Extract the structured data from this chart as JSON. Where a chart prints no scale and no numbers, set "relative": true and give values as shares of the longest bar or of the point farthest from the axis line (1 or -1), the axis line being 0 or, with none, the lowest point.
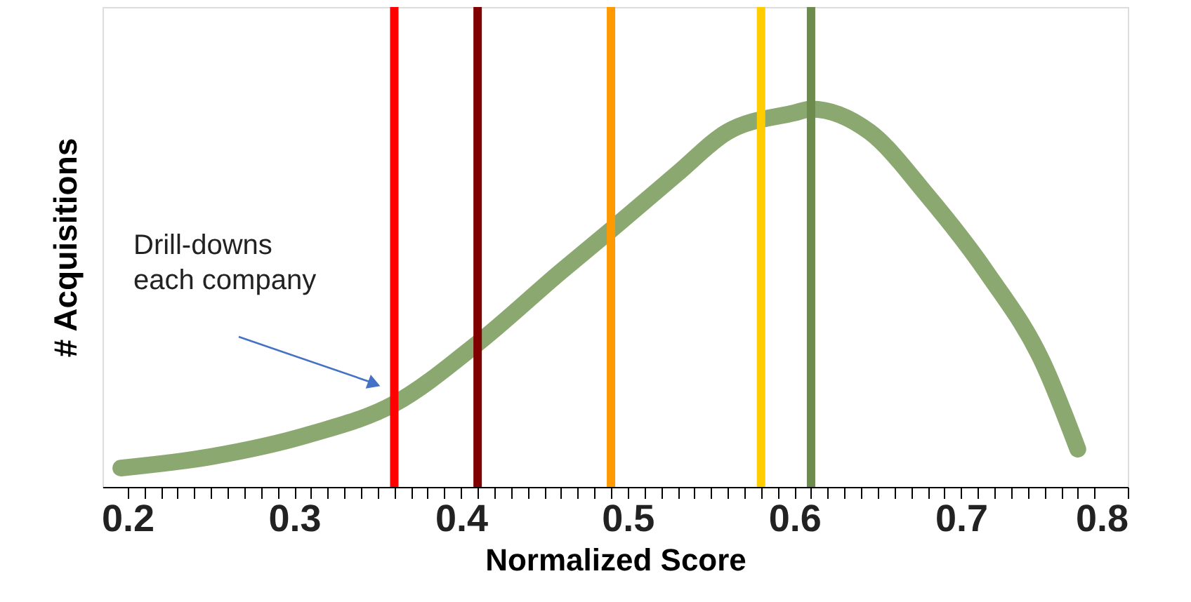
{
  "chart_data": {
    "type": "line",
    "xlabel": "Normalized Score",
    "ylabel": "# Acquisitions",
    "relative": true,
    "grid": false,
    "line_style": "solid",
    "x": [
      0.196,
      0.25,
      0.31,
      0.36,
      0.41,
      0.46,
      0.49,
      0.53,
      0.56,
      0.6,
      0.61,
      0.645,
      0.68,
      0.715,
      0.75,
      0.77
    ],
    "series": [
      {
        "color": "#8aa870",
        "values": [
          0.05,
          0.08,
          0.14,
          0.22,
          0.38,
          0.57,
          0.68,
          0.83,
          0.94,
          0.99,
          1.0,
          0.94,
          0.77,
          0.57,
          0.32,
          0.1
        ]
      }
    ],
    "xlim": [
      0.185,
      0.8
    ],
    "xticks": [
      0.2,
      {
        "value": 0.21,
        "label": null
      },
      {
        "value": 0.22,
        "label": null
      },
      {
        "value": 0.23,
        "label": null
      },
      {
        "value": 0.24,
        "label": null
      },
      {
        "value": 0.25,
        "label": null
      },
      {
        "value": 0.26,
        "label": null
      },
      {
        "value": 0.27,
        "label": null
      },
      {
        "value": 0.28,
        "label": null
      },
      {
        "value": 0.29,
        "label": null
      },
      0.3,
      {
        "value": 0.31,
        "label": null
      },
      {
        "value": 0.32,
        "label": null
      },
      {
        "value": 0.33,
        "label": null
      },
      {
        "value": 0.34,
        "label": null
      },
      {
        "value": 0.35,
        "label": null
      },
      {
        "value": 0.36,
        "label": null
      },
      {
        "value": 0.37,
        "label": null
      },
      {
        "value": 0.38,
        "label": null
      },
      {
        "value": 0.39,
        "label": null
      },
      0.4,
      {
        "value": 0.41,
        "label": null
      },
      {
        "value": 0.42,
        "label": null
      },
      {
        "value": 0.43,
        "label": null
      },
      {
        "value": 0.44,
        "label": null
      },
      {
        "value": 0.45,
        "label": null
      },
      {
        "value": 0.46,
        "label": null
      },
      {
        "value": 0.47,
        "label": null
      },
      {
        "value": 0.48,
        "label": null
      },
      {
        "value": 0.49,
        "label": null
      },
      0.5,
      {
        "value": 0.51,
        "label": null
      },
      {
        "value": 0.52,
        "label": null
      },
      {
        "value": 0.53,
        "label": null
      },
      {
        "value": 0.54,
        "label": null
      },
      {
        "value": 0.55,
        "label": null
      },
      {
        "value": 0.56,
        "label": null
      },
      {
        "value": 0.57,
        "label": null
      },
      {
        "value": 0.58,
        "label": null
      },
      {
        "value": 0.59,
        "label": null
      },
      0.6,
      {
        "value": 0.61,
        "label": null
      },
      {
        "value": 0.62,
        "label": null
      },
      {
        "value": 0.63,
        "label": null
      },
      {
        "value": 0.64,
        "label": null
      },
      {
        "value": 0.65,
        "label": null
      },
      {
        "value": 0.66,
        "label": null
      },
      {
        "value": 0.67,
        "label": null
      },
      {
        "value": 0.68,
        "label": null
      },
      {
        "value": 0.69,
        "label": null
      },
      0.7,
      {
        "value": 0.71,
        "label": null
      },
      {
        "value": 0.72,
        "label": null
      },
      {
        "value": 0.73,
        "label": null
      },
      {
        "value": 0.74,
        "label": null
      },
      {
        "value": 0.75,
        "label": null
      },
      {
        "value": 0.76,
        "label": null
      },
      {
        "value": 0.77,
        "label": null
      },
      {
        "value": 0.78,
        "label": null
      },
      0.8
    ],
    "ref_lines": [
      {
        "axis": "x",
        "value": 0.36,
        "color": "#ff0000"
      },
      {
        "axis": "x",
        "value": 0.41,
        "color": "#800000"
      },
      {
        "axis": "x",
        "value": 0.49,
        "color": "#ff9900"
      },
      {
        "axis": "x",
        "value": 0.58,
        "color": "#ffcc00"
      },
      {
        "axis": "x",
        "value": 0.61,
        "color": "#6e8b4e"
      }
    ],
    "annotations": [
      "Drill-downs\neach company"
    ]
  }
}
